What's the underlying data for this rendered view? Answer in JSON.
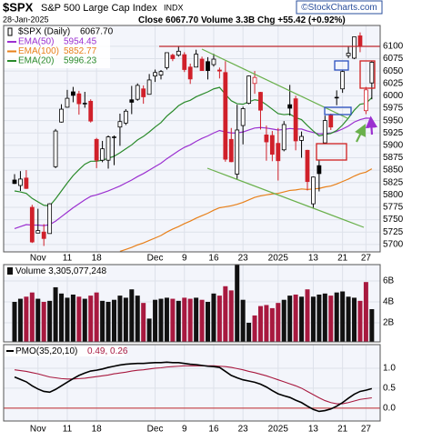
{
  "header": {
    "symbol": "$SPX",
    "name": "S&P 500 Large Cap Index",
    "exchange": "INDX",
    "brand": "©StockCharts.com",
    "date": "28-Jan-2025",
    "close_label": "Close",
    "close": "6067.70",
    "volume_label": "Volume",
    "volume": "3.3B",
    "chg_label": "Chg",
    "chg": "+55.42 (+0.92%)"
  },
  "chart_data": [
    {
      "type": "candlestick",
      "name": "$SPX (Daily)",
      "last_label": "6067.70",
      "grid": true,
      "categories": [
        null,
        null,
        null,
        null,
        "Nov",
        null,
        null,
        null,
        null,
        "11",
        null,
        null,
        null,
        null,
        "18",
        null,
        null,
        null,
        null,
        null,
        null,
        null,
        null,
        null,
        "Dec",
        null,
        null,
        null,
        null,
        "9",
        null,
        null,
        null,
        null,
        "16",
        null,
        null,
        null,
        null,
        "23",
        null,
        null,
        null,
        null,
        null,
        "2025",
        null,
        null,
        null,
        null,
        null,
        "13",
        null,
        null,
        null,
        null,
        "21",
        null,
        null,
        null,
        "27",
        null
      ],
      "open": [
        5830,
        5819,
        5834,
        5775,
        5723,
        5725,
        5722,
        5857,
        5947,
        5977,
        6008,
        6004,
        5985,
        5989,
        5912,
        5870,
        5870,
        5917,
        5937,
        5945,
        5992,
        5993,
        6014,
        6003,
        6040,
        6042,
        6057,
        6082,
        6082,
        6083,
        6058,
        6058,
        6074,
        6069,
        6063,
        6052,
        6047,
        5912,
        5842,
        5940,
        5985,
        6025,
        6007,
        5921,
        5920,
        5904,
        5891,
        5982,
        5994,
        5910,
        5890,
        5782,
        5859,
        5905,
        5962,
        5996,
        6014,
        6081,
        6076,
        6121,
        5970,
        6026
      ],
      "high": [
        5842,
        5848,
        5850,
        5780,
        5772,
        5741,
        5783,
        5933,
        5983,
        6012,
        6018,
        6010,
        6008,
        5993,
        5915,
        5909,
        5920,
        5920,
        5964,
        5973,
        6020,
        6025,
        6021,
        6044,
        6053,
        6052,
        6087,
        6085,
        6099,
        6088,
        6065,
        6093,
        6079,
        6078,
        6085,
        6057,
        6070,
        5935,
        5982,
        5978,
        6041,
        6050,
        6008,
        5940,
        5929,
        5935,
        5949,
        6022,
        6000,
        5928,
        5891,
        5837,
        5871,
        5960,
        5964,
        6011,
        6051,
        6100,
        6119,
        6128,
        6018,
        6070
      ],
      "low": [
        5822,
        5808,
        5812,
        5703,
        5723,
        5697,
        5722,
        5854,
        5946,
        5976,
        5987,
        5962,
        5976,
        5946,
        5854,
        5866,
        5853,
        5860,
        5899,
        5941,
        5963,
        5990,
        5984,
        6003,
        6028,
        6033,
        6053,
        6070,
        6079,
        6048,
        6024,
        6058,
        6051,
        6033,
        6059,
        6035,
        5867,
        5866,
        5832,
        5902,
        5983,
        6004,
        5932,
        5869,
        5868,
        5829,
        5888,
        5960,
        5890,
        5875,
        5809,
        5773,
        5807,
        5905,
        5931,
        5981,
        6006,
        6076,
        6074,
        6088,
        5963,
        5993
      ],
      "close": [
        5823,
        5832,
        5813,
        5705,
        5728,
        5712,
        5782,
        5929,
        5973,
        5995,
        6001,
        5984,
        5985,
        5949,
        5870,
        5893,
        5917,
        5917,
        5948,
        5969,
        5987,
        6021,
        5998,
        6032,
        6047,
        6049,
        6087,
        6075,
        6090,
        6053,
        6034,
        6084,
        6051,
        6051,
        6074,
        6050,
        5872,
        5867,
        5931,
        5974,
        6040,
        6037,
        5971,
        5907,
        5882,
        5869,
        5942,
        5975,
        5909,
        5918,
        5827,
        5836,
        5843,
        5950,
        5937,
        5997,
        6049,
        6086,
        6119,
        6101,
        6012,
        6067.7
      ],
      "ylim": [
        5685,
        6142
      ],
      "yticks": [
        6100,
        6075,
        6050,
        6025,
        6000,
        5975,
        5950,
        5925,
        5900,
        5875,
        5850,
        5825,
        5800,
        5775,
        5750,
        5725,
        5700
      ],
      "overlays": [
        {
          "name": "EMA(50)",
          "last_label": "5954.45",
          "color": "#9b30d0",
          "values": [
            5732,
            5736,
            5740,
            5739,
            5739,
            5738,
            5740,
            5747,
            5756,
            5765,
            5774,
            5782,
            5790,
            5797,
            5800,
            5804,
            5808,
            5813,
            5818,
            5824,
            5830,
            5837,
            5843,
            5850,
            5857,
            5864,
            5873,
            5881,
            5889,
            5896,
            5901,
            5908,
            5914,
            5919,
            5925,
            5930,
            5927,
            5925,
            5925,
            5927,
            5931,
            5935,
            5936,
            5935,
            5933,
            5931,
            5932,
            5934,
            5933,
            5933,
            5929,
            5926,
            5923,
            5924,
            5925,
            5928,
            5933,
            5939,
            5947,
            5952,
            5955,
            5954.45
          ]
        },
        {
          "name": "EMA(100)",
          "last_label": "5852.77",
          "color": "#e8801a",
          "values": [
            null,
            null,
            null,
            null,
            null,
            null,
            null,
            null,
            null,
            null,
            null,
            null,
            null,
            null,
            null,
            null,
            null,
            null,
            5686,
            5690,
            5694,
            5699,
            5703,
            5708,
            5713,
            5718,
            5725,
            5731,
            5736,
            5742,
            5747,
            5753,
            5758,
            5763,
            5769,
            5774,
            5776,
            5778,
            5781,
            5785,
            5790,
            5795,
            5798,
            5800,
            5802,
            5803,
            5806,
            5809,
            5810,
            5812,
            5811,
            5812,
            5813,
            5816,
            5818,
            5822,
            5827,
            5832,
            5838,
            5843,
            5846,
            5852.77
          ]
        },
        {
          "name": "EMA(20)",
          "last_label": "5996.23",
          "color": "#2a8a2a",
          "values": [
            5808,
            5806,
            5803,
            5793,
            5786,
            5779,
            5778,
            5792,
            5808,
            5824,
            5839,
            5851,
            5862,
            5868,
            5868,
            5870,
            5874,
            5878,
            5885,
            5893,
            5901,
            5911,
            5918,
            5927,
            5937,
            5946,
            5959,
            5969,
            5980,
            5987,
            5991,
            5998,
            6003,
            6008,
            6014,
            6017,
            6003,
            5990,
            5984,
            5983,
            5988,
            5992,
            5990,
            5982,
            5973,
            5964,
            5962,
            5963,
            5956,
            5952,
            5940,
            5929,
            5919,
            5922,
            5924,
            5930,
            5941,
            5955,
            5971,
            5983,
            5985,
            5996.23
          ]
        }
      ]
    },
    {
      "type": "bar",
      "title": "Volume 3,305,077,248",
      "grid": true,
      "up_color": "#111111",
      "down_color": "#a8193f",
      "values": [
        4000000000.0,
        4300000000.0,
        4500000000.0,
        4900000000.0,
        4300000000.0,
        4000000000.0,
        4100000000.0,
        5400000000.0,
        4800000000.0,
        4400000000.0,
        4700000000.0,
        4500000000.0,
        4300000000.0,
        4600000000.0,
        4900000000.0,
        4100000000.0,
        4000000000.0,
        4200000000.0,
        4600000000.0,
        4400000000.0,
        5200000000.0,
        4600000000.0,
        3900000000.0,
        2400000000.0,
        4200000000.0,
        4300000000.0,
        4400000000.0,
        4300000000.0,
        4100000000.0,
        4400000000.0,
        4300000000.0,
        4400000000.0,
        4200000000.0,
        4000000000.0,
        4800000000.0,
        4600000000.0,
        5500000000.0,
        5100000000.0,
        8200000000.0,
        4200000000.0,
        2000000000.0,
        2700000000.0,
        3600000000.0,
        3700000000.0,
        3400000000.0,
        3900000000.0,
        4200000000.0,
        4600000000.0,
        4700000000.0,
        4500000000.0,
        5200000000.0,
        4500000000.0,
        4700000000.0,
        4800000000.0,
        4600000000.0,
        4900000000.0,
        5000000000.0,
        4500000000.0,
        4400000000.0,
        4100000000.0,
        5900000000.0,
        3305077248
      ],
      "ylim": [
        170000000.0,
        7570000000.0
      ],
      "yticks": [
        {
          "value": 2000000000.0,
          "label": "2B"
        },
        {
          "value": 4000000000.0,
          "label": "4B"
        },
        {
          "value": 6000000000.0,
          "label": "6B"
        }
      ]
    },
    {
      "type": "line",
      "title": "PMO(35,20,10)",
      "title_values": "0.49, 0.26",
      "grid": true,
      "zero_line": true,
      "categories": [
        null,
        null,
        null,
        null,
        "Nov",
        null,
        null,
        null,
        null,
        "11",
        null,
        null,
        null,
        null,
        "18",
        null,
        null,
        null,
        null,
        null,
        null,
        null,
        null,
        null,
        "Dec",
        null,
        null,
        null,
        null,
        "9",
        null,
        null,
        null,
        null,
        "16",
        null,
        null,
        null,
        null,
        "23",
        null,
        null,
        null,
        null,
        null,
        "2025",
        null,
        null,
        null,
        null,
        null,
        "13",
        null,
        null,
        null,
        null,
        "21",
        null,
        null,
        null,
        "27",
        null
      ],
      "series": [
        {
          "color": "#000000",
          "values": [
            0.78,
            0.72,
            0.66,
            0.56,
            0.48,
            0.42,
            0.4,
            0.47,
            0.56,
            0.65,
            0.74,
            0.82,
            0.88,
            0.93,
            0.95,
            0.98,
            1.02,
            1.05,
            1.08,
            1.1,
            1.11,
            1.12,
            1.12,
            1.13,
            1.14,
            1.14,
            1.15,
            1.14,
            1.14,
            1.12,
            1.1,
            1.09,
            1.07,
            1.05,
            1.04,
            1.02,
            0.92,
            0.82,
            0.76,
            0.71,
            0.68,
            0.65,
            0.6,
            0.53,
            0.44,
            0.36,
            0.31,
            0.27,
            0.2,
            0.14,
            0.05,
            -0.03,
            -0.08,
            -0.06,
            -0.02,
            0.05,
            0.14,
            0.25,
            0.35,
            0.42,
            0.45,
            0.49
          ]
        },
        {
          "color": "#a8193f",
          "values": [
            0.96,
            0.94,
            0.92,
            0.89,
            0.86,
            0.82,
            0.78,
            0.76,
            0.74,
            0.73,
            0.73,
            0.74,
            0.75,
            0.77,
            0.79,
            0.81,
            0.83,
            0.86,
            0.88,
            0.9,
            0.93,
            0.95,
            0.96,
            0.98,
            1.0,
            1.01,
            1.03,
            1.04,
            1.05,
            1.06,
            1.06,
            1.06,
            1.06,
            1.06,
            1.06,
            1.05,
            1.04,
            1.02,
            0.99,
            0.96,
            0.92,
            0.89,
            0.85,
            0.81,
            0.76,
            0.71,
            0.66,
            0.61,
            0.56,
            0.5,
            0.42,
            0.34,
            0.26,
            0.19,
            0.14,
            0.11,
            0.11,
            0.14,
            0.18,
            0.22,
            0.24,
            0.26
          ]
        }
      ],
      "ylim": [
        -0.32,
        1.59
      ],
      "yticks": [
        {
          "value": 1.0,
          "label": "1.0"
        },
        {
          "value": 0.5,
          "label": "0.5"
        },
        {
          "value": 0.0,
          "label": "0.0"
        }
      ]
    }
  ]
}
